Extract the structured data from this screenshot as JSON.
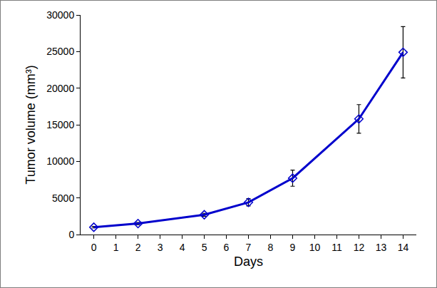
{
  "chart_data": {
    "type": "line",
    "x_label": "Days",
    "y_label": "Tumor volume (mm³)",
    "x": [
      0,
      2,
      5,
      7,
      9,
      12,
      14
    ],
    "values": [
      1000,
      1500,
      2700,
      4400,
      7700,
      15800,
      24900
    ],
    "error": [
      100,
      150,
      200,
      500,
      1100,
      1950,
      3500
    ],
    "color": "#0000cc",
    "marker": "diamond",
    "line_style": "solid",
    "xlim": [
      -0.6,
      14.6
    ],
    "xticks": [
      0,
      1,
      2,
      3,
      4,
      5,
      6,
      7,
      8,
      9,
      10,
      11,
      12,
      13,
      14
    ],
    "ylim": [
      0,
      30000
    ],
    "yticks": [
      0,
      5000,
      10000,
      15000,
      20000,
      25000,
      30000
    ],
    "grid": false
  }
}
